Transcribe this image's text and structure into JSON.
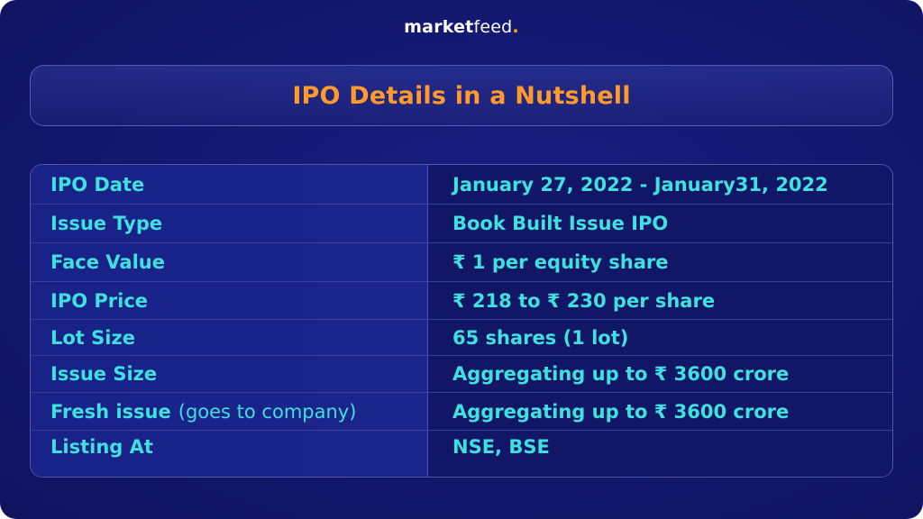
{
  "brand": {
    "name_bold": "market",
    "name_thin": "feed",
    "dot": "."
  },
  "title": "IPO Details in a Nutshell",
  "colors": {
    "background": "#141870",
    "title": "#ff9a2b",
    "table_text": "#3fe0dd",
    "brand_dot": "#f5a623"
  },
  "rows": [
    {
      "label": "IPO Date",
      "note": "",
      "value": "January 27, 2022 - January31, 2022"
    },
    {
      "label": "Issue Type",
      "note": "",
      "value": "Book Built Issue IPO"
    },
    {
      "label": "Face Value",
      "note": "",
      "value": "₹ 1 per equity share"
    },
    {
      "label": "IPO Price",
      "note": "",
      "value": "₹ 218 to ₹ 230 per share"
    },
    {
      "label": "Lot Size",
      "note": "",
      "value": "65 shares (1 lot)"
    },
    {
      "label": "Issue Size",
      "note": "",
      "value": "Aggregating up to ₹ 3600 crore"
    },
    {
      "label": "Fresh issue",
      "note": "(goes to company)",
      "value": "Aggregating up to ₹ 3600 crore"
    },
    {
      "label": "Listing At",
      "note": "",
      "value": "NSE, BSE"
    }
  ]
}
